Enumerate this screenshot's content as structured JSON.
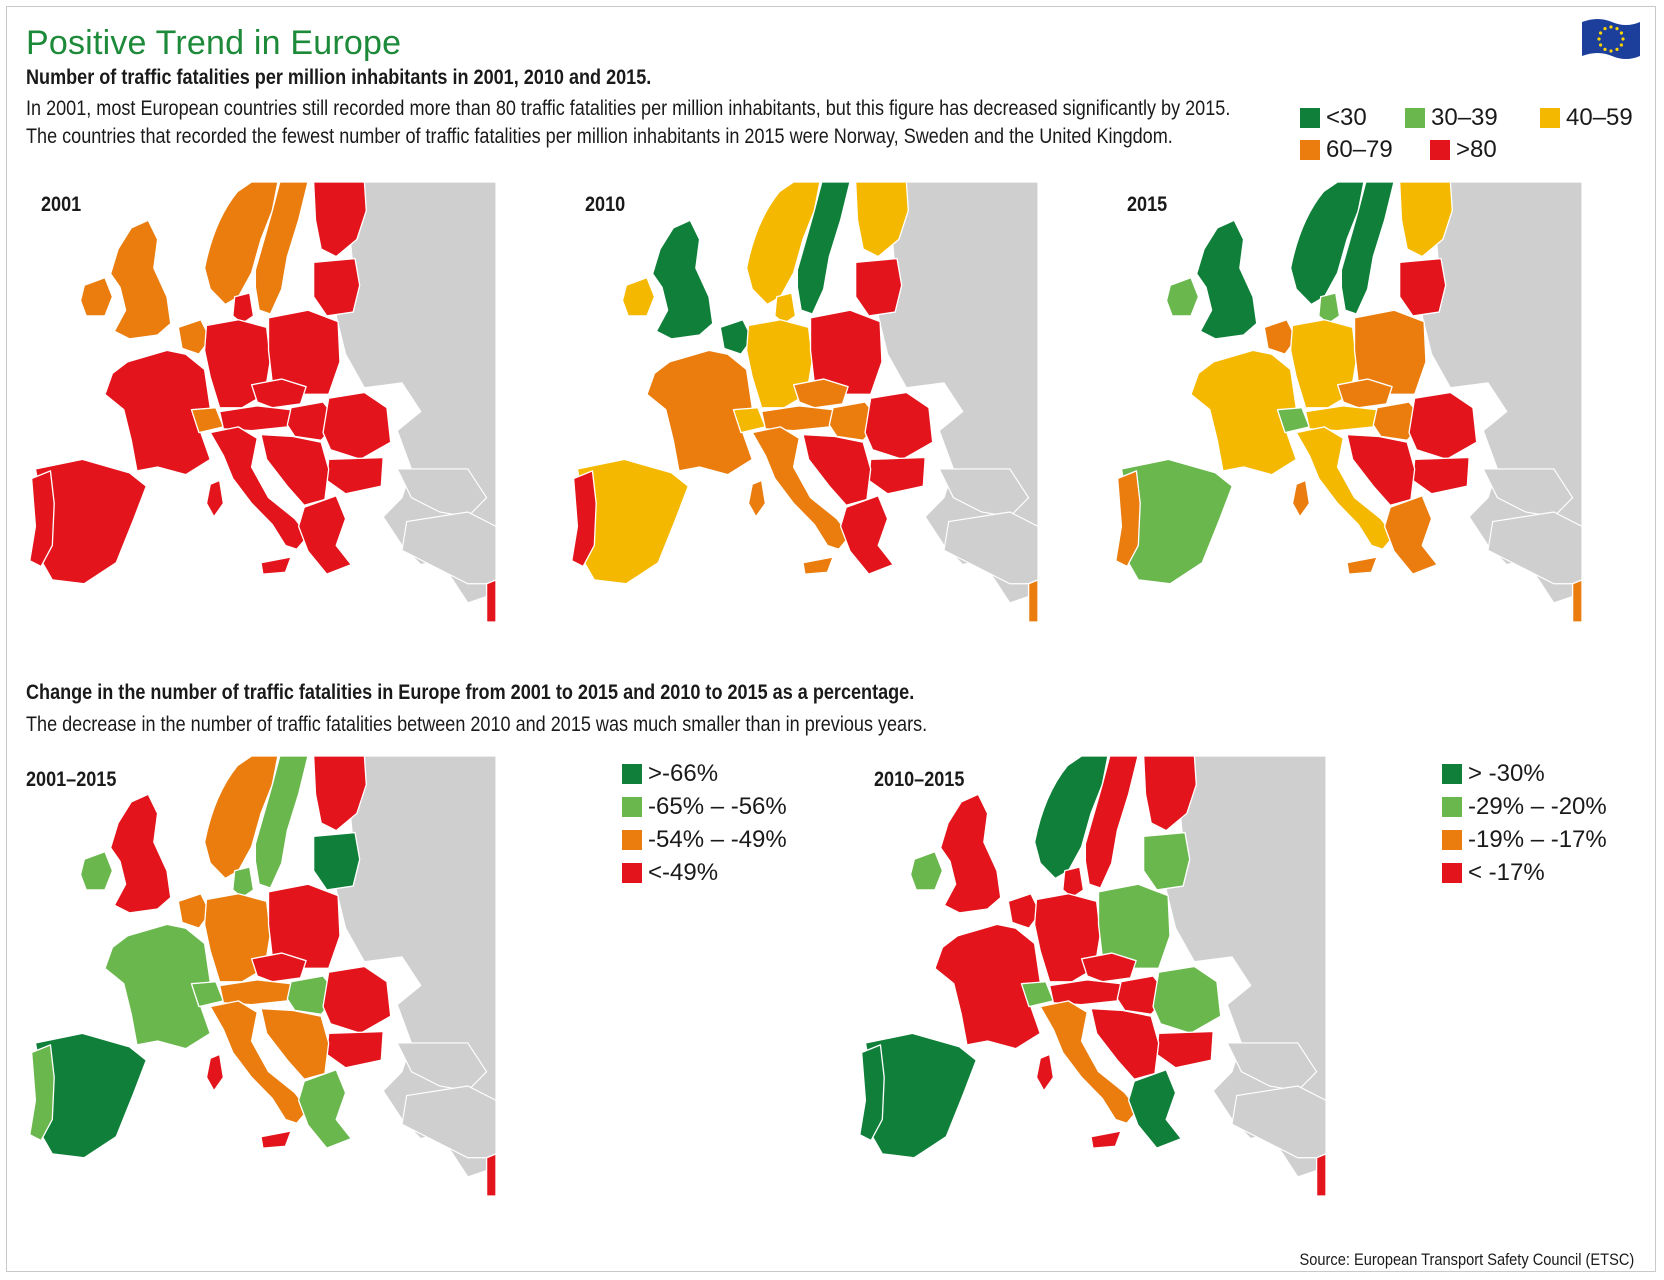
{
  "title": "Positive Trend in Europe",
  "section1": {
    "heading": "Number of traffic fatalities per million inhabitants in 2001, 2010 and 2015.",
    "desc_line1": "In 2001, most European countries still recorded more than 80 traffic fatalities per million inhabitants, but this figure has decreased significantly by 2015.",
    "desc_line2": "The countries that recorded the fewest number of traffic fatalities per million inhabitants in 2015 were Norway, Sweden and the United Kingdom.",
    "legend": [
      {
        "label": "<30",
        "color": "#0f7f3a"
      },
      {
        "label": "30–39",
        "color": "#6ab74e"
      },
      {
        "label": "40–59",
        "color": "#f5b800"
      },
      {
        "label": "60–79",
        "color": "#ea7d0e"
      },
      {
        "label": ">80",
        "color": "#e3141b"
      }
    ],
    "maps": [
      {
        "label": "2001",
        "regions": {
          "iberia": "#e3141b",
          "portugal": "#e3141b",
          "france": "#e3141b",
          "uk": "#ea7d0e",
          "ireland": "#ea7d0e",
          "benelux": "#ea7d0e",
          "germany": "#e3141b",
          "poland": "#e3141b",
          "italy": "#e3141b",
          "swiss": "#ea7d0e",
          "austria": "#e3141b",
          "czech": "#e3141b",
          "hungary": "#e3141b",
          "romania": "#e3141b",
          "bulgaria": "#e3141b",
          "greece": "#e3141b",
          "balkans": "#e3141b",
          "norway": "#ea7d0e",
          "sweden": "#ea7d0e",
          "finland": "#e3141b",
          "baltics": "#e3141b",
          "denmark": "#e3141b",
          "islands": "#e3141b"
        }
      },
      {
        "label": "2010",
        "regions": {
          "iberia": "#f5b800",
          "portugal": "#e3141b",
          "france": "#ea7d0e",
          "uk": "#0f7f3a",
          "ireland": "#f5b800",
          "benelux": "#0f7f3a",
          "germany": "#f5b800",
          "poland": "#e3141b",
          "italy": "#ea7d0e",
          "swiss": "#f5b800",
          "austria": "#ea7d0e",
          "czech": "#ea7d0e",
          "hungary": "#ea7d0e",
          "romania": "#e3141b",
          "bulgaria": "#e3141b",
          "greece": "#e3141b",
          "balkans": "#e3141b",
          "norway": "#f5b800",
          "sweden": "#0f7f3a",
          "finland": "#f5b800",
          "baltics": "#e3141b",
          "denmark": "#f5b800",
          "islands": "#ea7d0e"
        }
      },
      {
        "label": "2015",
        "regions": {
          "iberia": "#6ab74e",
          "portugal": "#ea7d0e",
          "france": "#f5b800",
          "uk": "#0f7f3a",
          "ireland": "#6ab74e",
          "benelux": "#ea7d0e",
          "germany": "#f5b800",
          "poland": "#ea7d0e",
          "italy": "#f5b800",
          "swiss": "#6ab74e",
          "austria": "#f5b800",
          "czech": "#ea7d0e",
          "hungary": "#ea7d0e",
          "romania": "#e3141b",
          "bulgaria": "#e3141b",
          "greece": "#ea7d0e",
          "balkans": "#e3141b",
          "norway": "#0f7f3a",
          "sweden": "#0f7f3a",
          "finland": "#f5b800",
          "baltics": "#e3141b",
          "denmark": "#6ab74e",
          "islands": "#ea7d0e"
        }
      }
    ]
  },
  "section2": {
    "heading": "Change in the number of traffic fatalities in Europe from 2001 to 2015 and 2010 to 2015 as a percentage.",
    "desc": "The decrease in the number of traffic fatalities between 2010 and 2015 was much smaller than in previous years.",
    "maps": [
      {
        "label": "2001–2015",
        "legend": [
          {
            "label": ">-66%",
            "color": "#0f7f3a"
          },
          {
            "label": "-65% – -56%",
            "color": "#6ab74e"
          },
          {
            "label": "-54% – -49%",
            "color": "#ea7d0e"
          },
          {
            "label": "<-49%",
            "color": "#e3141b"
          }
        ],
        "regions": {
          "iberia": "#0f7f3a",
          "portugal": "#6ab74e",
          "france": "#6ab74e",
          "uk": "#e3141b",
          "ireland": "#6ab74e",
          "benelux": "#ea7d0e",
          "germany": "#ea7d0e",
          "poland": "#e3141b",
          "italy": "#ea7d0e",
          "swiss": "#6ab74e",
          "austria": "#ea7d0e",
          "czech": "#e3141b",
          "hungary": "#6ab74e",
          "romania": "#e3141b",
          "bulgaria": "#e3141b",
          "greece": "#6ab74e",
          "balkans": "#ea7d0e",
          "norway": "#ea7d0e",
          "sweden": "#6ab74e",
          "finland": "#e3141b",
          "baltics": "#0f7f3a",
          "denmark": "#6ab74e",
          "islands": "#e3141b"
        }
      },
      {
        "label": "2010–2015",
        "legend": [
          {
            "label": "> -30%",
            "color": "#0f7f3a"
          },
          {
            "label": "-29% – -20%",
            "color": "#6ab74e"
          },
          {
            "label": "-19% – -17%",
            "color": "#ea7d0e"
          },
          {
            "label": "< -17%",
            "color": "#e3141b"
          }
        ],
        "regions": {
          "iberia": "#0f7f3a",
          "portugal": "#0f7f3a",
          "france": "#e3141b",
          "uk": "#e3141b",
          "ireland": "#6ab74e",
          "benelux": "#e3141b",
          "germany": "#e3141b",
          "poland": "#6ab74e",
          "italy": "#ea7d0e",
          "swiss": "#6ab74e",
          "austria": "#e3141b",
          "czech": "#e3141b",
          "hungary": "#e3141b",
          "romania": "#6ab74e",
          "bulgaria": "#e3141b",
          "greece": "#0f7f3a",
          "balkans": "#e3141b",
          "norway": "#0f7f3a",
          "sweden": "#e3141b",
          "finland": "#e3141b",
          "baltics": "#6ab74e",
          "denmark": "#e3141b",
          "islands": "#e3141b"
        }
      }
    ]
  },
  "source": "Source: European Transport Safety Council (ETSC)",
  "colors": {
    "grey_land": "#cfcfcf",
    "sea": "#ffffff",
    "title_green": "#1d8a3a"
  },
  "icons": {
    "flag": "eu-flag-icon"
  }
}
